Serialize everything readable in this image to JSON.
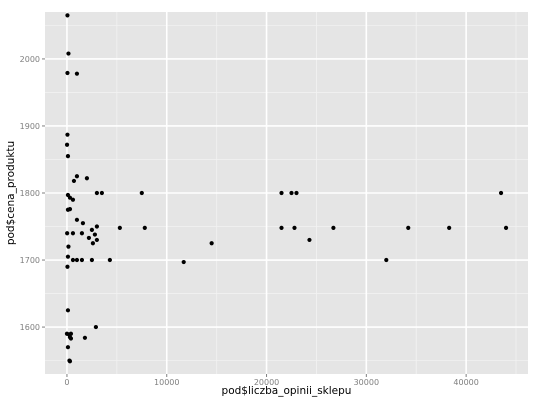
{
  "chart_data": {
    "type": "scatter",
    "xlabel": "pod$liczba_opinii_sklepu",
    "ylabel": "pod$cena_produktu",
    "xlim": [
      -2200,
      46200
    ],
    "ylim": [
      1530,
      2070
    ],
    "x_ticks": [
      0,
      10000,
      20000,
      30000,
      40000
    ],
    "y_ticks": [
      1600,
      1700,
      1800,
      1900,
      2000
    ],
    "x_tick_labels": [
      "0",
      "10000",
      "20000",
      "30000",
      "40000"
    ],
    "y_tick_labels": [
      "1600",
      "1700",
      "1800",
      "1900",
      "2000"
    ],
    "grid": true,
    "panel_background": "#e5e5e5",
    "grid_major_color": "#ffffff",
    "grid_minor_color": "#f2f2f2",
    "point_color": "#000000",
    "points": [
      [
        50,
        2065
      ],
      [
        150,
        2008
      ],
      [
        50,
        1979
      ],
      [
        1000,
        1978
      ],
      [
        50,
        1887
      ],
      [
        10,
        1872
      ],
      [
        100,
        1855
      ],
      [
        1000,
        1825
      ],
      [
        700,
        1818
      ],
      [
        2000,
        1822
      ],
      [
        100,
        1797
      ],
      [
        300,
        1793
      ],
      [
        600,
        1790
      ],
      [
        3000,
        1800
      ],
      [
        3500,
        1800
      ],
      [
        7500,
        1800
      ],
      [
        21500,
        1800
      ],
      [
        22500,
        1800
      ],
      [
        23000,
        1800
      ],
      [
        43500,
        1800
      ],
      [
        100,
        1775
      ],
      [
        300,
        1776
      ],
      [
        1000,
        1760
      ],
      [
        1600,
        1755
      ],
      [
        3000,
        1750
      ],
      [
        5300,
        1748
      ],
      [
        7800,
        1748
      ],
      [
        21500,
        1748
      ],
      [
        22800,
        1748
      ],
      [
        26700,
        1748
      ],
      [
        34200,
        1748
      ],
      [
        38300,
        1748
      ],
      [
        44000,
        1748
      ],
      [
        20,
        1740
      ],
      [
        600,
        1740
      ],
      [
        1500,
        1740
      ],
      [
        2500,
        1745
      ],
      [
        2800,
        1738
      ],
      [
        2200,
        1733
      ],
      [
        3000,
        1730
      ],
      [
        24300,
        1730
      ],
      [
        2600,
        1725
      ],
      [
        14500,
        1725
      ],
      [
        150,
        1720
      ],
      [
        100,
        1705
      ],
      [
        600,
        1700
      ],
      [
        1000,
        1700
      ],
      [
        1500,
        1700
      ],
      [
        2500,
        1700
      ],
      [
        4300,
        1700
      ],
      [
        11700,
        1697
      ],
      [
        32000,
        1700
      ],
      [
        50,
        1690
      ],
      [
        100,
        1625
      ],
      [
        2900,
        1600
      ],
      [
        0,
        1590
      ],
      [
        200,
        1589
      ],
      [
        400,
        1590
      ],
      [
        300,
        1585
      ],
      [
        400,
        1583
      ],
      [
        1800,
        1584
      ],
      [
        100,
        1570
      ],
      [
        250,
        1550
      ],
      [
        300,
        1549
      ]
    ]
  }
}
